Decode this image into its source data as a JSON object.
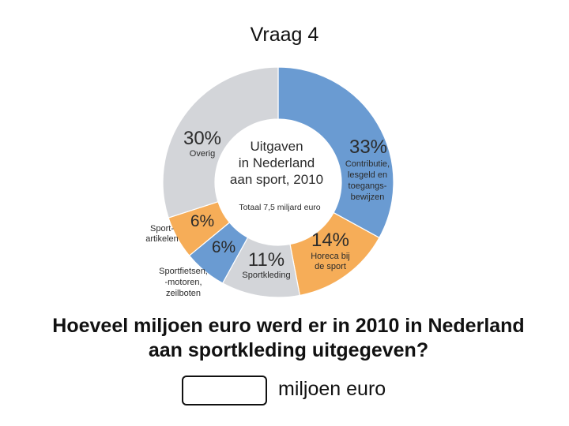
{
  "title": "Vraag 4",
  "chart_data": {
    "type": "pie",
    "center_title": [
      "Uitgaven",
      "in Nederland",
      "aan sport, 2010"
    ],
    "center_subtitle": "Totaal 7,5 miljard euro",
    "slices": [
      {
        "value": 33,
        "label_pct": "33%",
        "label_lines": [
          "Contributie,",
          "lesgeld en",
          "toegangs-",
          "bewijzen"
        ],
        "color": "#6a9bd2"
      },
      {
        "value": 14,
        "label_pct": "14%",
        "label_lines": [
          "Horeca bij",
          "de sport"
        ],
        "color": "#f6ad58"
      },
      {
        "value": 11,
        "label_pct": "11%",
        "label_lines": [
          "Sportkleding"
        ],
        "color": "#d3d5d9"
      },
      {
        "value": 6,
        "label_pct": "6%",
        "label_lines": [
          "Sportfietsen,",
          "-motoren,",
          "zeilboten"
        ],
        "color": "#6a9bd2"
      },
      {
        "value": 6,
        "label_pct": "6%",
        "label_lines": [
          "Sport-",
          "artikelen"
        ],
        "color": "#f6ad58"
      },
      {
        "value": 30,
        "label_pct": "30%",
        "label_lines": [
          "Overig"
        ],
        "color": "#d3d5d9"
      }
    ]
  },
  "question": {
    "line1": "Hoeveel miljoen euro werd er in 2010 in Nederland",
    "line2": "aan sportkleding uitgegeven?"
  },
  "answer": {
    "value": "",
    "unit": "miljoen euro"
  }
}
